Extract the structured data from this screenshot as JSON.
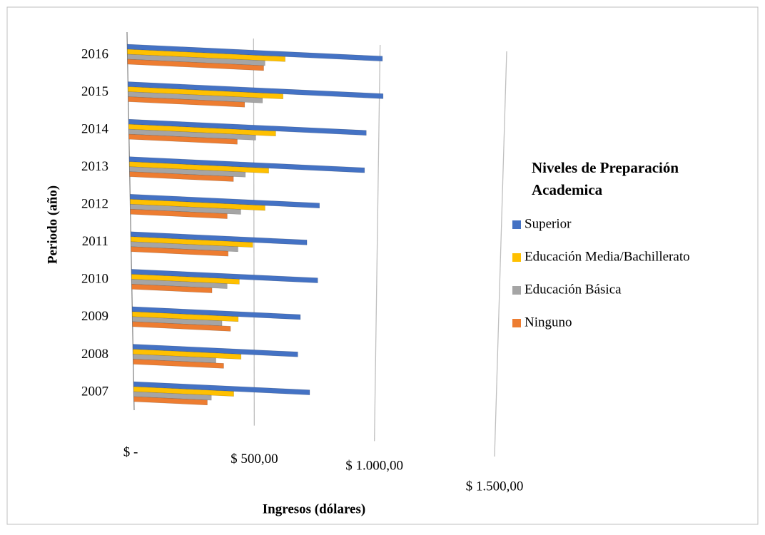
{
  "chart_data": {
    "type": "bar",
    "orientation": "horizontal",
    "x_label": "Ingresos (dólares)",
    "y_label": "Periodo (año)",
    "legend_title": "Niveles de Preparación Academica",
    "legend_position": "right",
    "grid": true,
    "categories": [
      "2007",
      "2008",
      "2009",
      "2010",
      "2011",
      "2012",
      "2013",
      "2014",
      "2015",
      "2016"
    ],
    "series": [
      {
        "name": "Superior",
        "color": "#4472c4",
        "values": [
          730,
          680,
          690,
          760,
          715,
          765,
          945,
          950,
          1015,
          1010
        ]
      },
      {
        "name": "Educación Media/Bachillerato",
        "color": "#ffc000",
        "values": [
          415,
          446,
          435,
          440,
          495,
          545,
          560,
          588,
          617,
          625
        ]
      },
      {
        "name": "Educación Básica",
        "color": "#a5a5a5",
        "values": [
          322,
          342,
          368,
          390,
          435,
          447,
          466,
          508,
          535,
          545
        ]
      },
      {
        "name": "Ninguno",
        "color": "#ed7d31",
        "values": [
          305,
          374,
          403,
          328,
          395,
          392,
          418,
          434,
          464,
          540
        ]
      }
    ],
    "xlim": [
      0,
      1500
    ],
    "xticks": [
      {
        "value": 0,
        "label": "$ -"
      },
      {
        "value": 500,
        "label": "$ 500,00"
      },
      {
        "value": 1000,
        "label": "$ 1.000,00"
      },
      {
        "value": 1500,
        "label": "$ 1.500,00"
      }
    ]
  }
}
